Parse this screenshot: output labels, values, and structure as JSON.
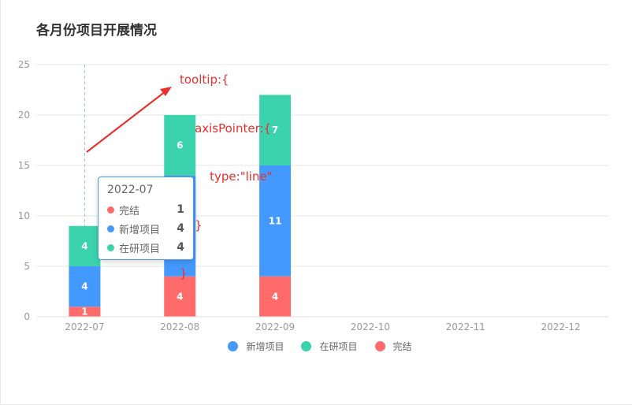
{
  "chart_data": {
    "type": "bar",
    "stacked": true,
    "title": "各月份项目开展情况",
    "categories": [
      "2022-07",
      "2022-08",
      "2022-09",
      "2022-10",
      "2022-11",
      "2022-12"
    ],
    "series": [
      {
        "name": "完结",
        "color": "#ff6b6b",
        "values": [
          1,
          4,
          4,
          0,
          0,
          0
        ]
      },
      {
        "name": "新增项目",
        "color": "#4499ff",
        "values": [
          4,
          10,
          11,
          0,
          0,
          0
        ]
      },
      {
        "name": "在研项目",
        "color": "#3bd3ad",
        "values": [
          4,
          6,
          7,
          0,
          0,
          0
        ]
      }
    ],
    "ylim": [
      0,
      25
    ],
    "yticks": [
      0,
      5,
      10,
      15,
      20,
      25
    ],
    "grid": true,
    "legend": {
      "position": "bottom",
      "items": [
        {
          "name": "新增项目",
          "color": "#4499ff"
        },
        {
          "name": "在研项目",
          "color": "#3bd3ad"
        },
        {
          "name": "完结",
          "color": "#ff6b6b"
        }
      ]
    },
    "tooltip": {
      "category": "2022-07",
      "rows": [
        {
          "name": "完结",
          "color": "#ff6b6b",
          "value": "1"
        },
        {
          "name": "新增项目",
          "color": "#4499ff",
          "value": "4"
        },
        {
          "name": "在研项目",
          "color": "#3bd3ad",
          "value": "4"
        }
      ]
    },
    "annotation": {
      "color": "#e8302e",
      "lines": [
        "tooltip:{",
        "    axisPointer:{",
        "        type:\"line\"",
        "    }",
        "}"
      ]
    }
  }
}
